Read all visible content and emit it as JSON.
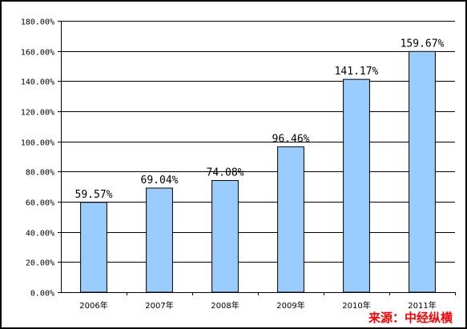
{
  "chart_data": {
    "type": "bar",
    "categories": [
      "2006年",
      "2007年",
      "2008年",
      "2009年",
      "2010年",
      "2011年"
    ],
    "values": [
      59.57,
      69.04,
      74.08,
      96.46,
      141.17,
      159.67
    ],
    "value_labels": [
      "59.57%",
      "69.04%",
      "74.08%",
      "96.46%",
      "141.17%",
      "159.67%"
    ],
    "y_ticks": [
      "0.00%",
      "20.00%",
      "40.00%",
      "60.00%",
      "80.00%",
      "100.00%",
      "120.00%",
      "140.00%",
      "160.00%",
      "180.00%"
    ],
    "ylim": [
      0,
      180
    ],
    "title": "",
    "xlabel": "",
    "ylabel": "",
    "grid": true,
    "legend": "none",
    "bar_color": "#99ccff"
  },
  "source": {
    "text": "来源：中经纵横",
    "color": "#ff0000"
  }
}
